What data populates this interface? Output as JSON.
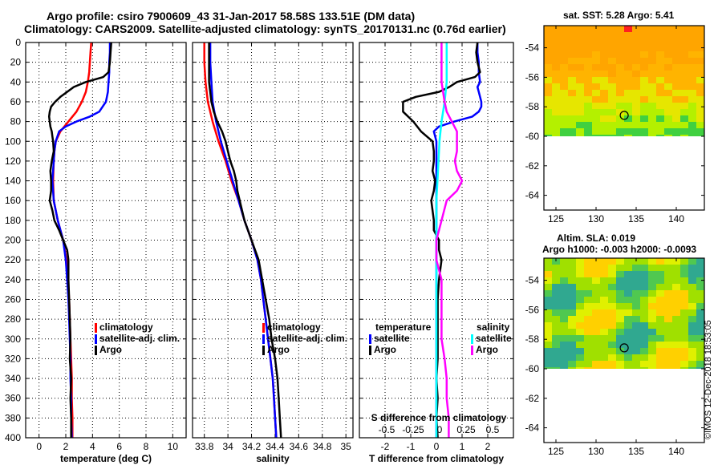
{
  "title": {
    "line1": "Argo profile: csiro 7900609_43 31-Jan-2017 58.58S 133.51E (DM data)",
    "line2": "Climatology: CARS2009. Satellite-adjusted climatology: synTS_20170131.nc (0.76d earlier)"
  },
  "depth_axis": {
    "ylim": [
      0,
      400
    ],
    "ticks": [
      0,
      20,
      40,
      60,
      80,
      100,
      120,
      140,
      160,
      180,
      200,
      220,
      240,
      260,
      280,
      300,
      320,
      340,
      360,
      380,
      400
    ]
  },
  "colors": {
    "climatology": "#ff0000",
    "satellite_adj": "#0000ff",
    "argo": "#000000",
    "sat_t": "#0000ff",
    "sat_s": "#00ffff",
    "argo_s": "#ff00ff"
  },
  "chart_data": [
    {
      "id": "temperature",
      "type": "line",
      "xlabel": "temperature (deg C)",
      "xlim": [
        -1,
        11
      ],
      "xticks": [
        0,
        2,
        4,
        6,
        8,
        10
      ],
      "ylim": [
        400,
        0
      ],
      "legend": [
        "climatology",
        "satellite-adj. clim.",
        "Argo"
      ],
      "series": [
        {
          "name": "climatology",
          "color": "#ff0000",
          "depth": [
            0,
            10,
            20,
            30,
            40,
            50,
            60,
            70,
            80,
            90,
            100,
            110,
            120,
            140,
            160,
            180,
            200,
            220,
            240,
            260,
            280,
            300,
            320,
            340,
            360,
            380,
            400
          ],
          "values": [
            3.9,
            3.85,
            3.8,
            3.75,
            3.65,
            3.5,
            3.2,
            2.8,
            2.2,
            1.6,
            1.25,
            1.15,
            1.1,
            1.05,
            1.1,
            1.4,
            1.8,
            2.05,
            2.15,
            2.25,
            2.3,
            2.35,
            2.4,
            2.45,
            2.45,
            2.5,
            2.5
          ]
        },
        {
          "name": "satellite-adj. clim.",
          "color": "#0000ff",
          "depth": [
            0,
            10,
            20,
            30,
            40,
            50,
            60,
            70,
            75,
            80,
            85,
            90,
            100,
            110,
            120,
            140,
            160,
            180,
            200,
            220,
            240,
            260,
            280,
            300,
            320,
            340,
            360,
            380,
            400
          ],
          "values": [
            5.3,
            5.3,
            5.25,
            5.25,
            5.2,
            5.15,
            5.0,
            4.5,
            3.8,
            2.8,
            2.0,
            1.5,
            1.25,
            1.15,
            1.1,
            1.0,
            1.1,
            1.4,
            1.8,
            2.0,
            2.1,
            2.2,
            2.25,
            2.3,
            2.35,
            2.35,
            2.4,
            2.4,
            2.45
          ]
        },
        {
          "name": "Argo",
          "color": "#000000",
          "depth": [
            0,
            10,
            20,
            30,
            35,
            40,
            45,
            50,
            55,
            60,
            65,
            70,
            75,
            80,
            85,
            90,
            95,
            100,
            110,
            120,
            130,
            140,
            150,
            160,
            170,
            180,
            190,
            200,
            210,
            220,
            240,
            260,
            280,
            300,
            320,
            340,
            360,
            380,
            400
          ],
          "values": [
            5.4,
            5.35,
            5.3,
            5.2,
            4.8,
            3.5,
            2.6,
            2.1,
            1.6,
            1.2,
            0.9,
            0.8,
            0.75,
            0.8,
            0.85,
            0.95,
            1.0,
            1.05,
            1.1,
            0.95,
            0.85,
            0.9,
            0.9,
            0.8,
            1.0,
            1.15,
            1.5,
            1.8,
            2.1,
            2.2,
            2.2,
            2.25,
            2.3,
            2.35,
            2.3,
            2.4,
            2.35,
            2.4,
            2.4
          ]
        }
      ]
    },
    {
      "id": "salinity",
      "type": "line",
      "xlabel": "salinity",
      "xlim": [
        33.7,
        35.06
      ],
      "xticks": [
        33.8,
        34,
        34.2,
        34.4,
        34.6,
        34.8,
        35
      ],
      "xtick_labels": [
        "33.8",
        "34",
        "34.2",
        "34.4",
        "34.6",
        "34.8",
        "35"
      ],
      "ylim": [
        400,
        0
      ],
      "legend": [
        "climatology",
        "satellite-adj. clim.",
        "Argo"
      ],
      "series": [
        {
          "name": "climatology",
          "color": "#ff0000",
          "depth": [
            0,
            20,
            40,
            60,
            80,
            100,
            120,
            140,
            160,
            180,
            200,
            220,
            240,
            260,
            280,
            300,
            320,
            340,
            360,
            380,
            400
          ],
          "values": [
            33.8,
            33.8,
            33.81,
            33.83,
            33.87,
            33.92,
            33.98,
            34.03,
            34.09,
            34.14,
            34.2,
            34.25,
            34.28,
            34.3,
            34.32,
            34.34,
            34.36,
            34.38,
            34.39,
            34.4,
            34.41
          ]
        },
        {
          "name": "satellite-adj. clim.",
          "color": "#0000ff",
          "depth": [
            0,
            20,
            40,
            60,
            80,
            100,
            120,
            140,
            160,
            180,
            200,
            220,
            240,
            260,
            280,
            300,
            320,
            340,
            360,
            380,
            400
          ],
          "values": [
            33.85,
            33.85,
            33.86,
            33.87,
            33.9,
            33.94,
            33.99,
            34.04,
            34.09,
            34.14,
            34.2,
            34.25,
            34.28,
            34.3,
            34.32,
            34.34,
            34.36,
            34.38,
            34.39,
            34.4,
            34.41
          ]
        },
        {
          "name": "Argo",
          "color": "#000000",
          "depth": [
            0,
            20,
            40,
            60,
            70,
            80,
            90,
            100,
            110,
            120,
            130,
            140,
            150,
            160,
            180,
            200,
            220,
            240,
            260,
            280,
            300,
            320,
            340,
            360,
            380,
            400
          ],
          "values": [
            33.84,
            33.84,
            33.84,
            33.86,
            33.88,
            33.91,
            33.95,
            33.98,
            34.0,
            34.02,
            34.05,
            34.07,
            34.08,
            34.1,
            34.14,
            34.2,
            34.26,
            34.29,
            34.32,
            34.35,
            34.37,
            34.4,
            34.42,
            34.43,
            34.44,
            34.45
          ]
        }
      ]
    },
    {
      "id": "difference",
      "type": "line",
      "xlabel": "T difference from climatology",
      "top_label": "S difference from climatology",
      "xlim": [
        -3,
        3
      ],
      "xticks": [
        -2,
        -1,
        0,
        1,
        2
      ],
      "s_ticks": [
        "-0.5",
        "-0.25",
        "0",
        "0.25",
        "0.5"
      ],
      "ylim": [
        400,
        0
      ],
      "legend_temperature": {
        "title": "temperature",
        "items": [
          "satellite",
          "Argo"
        ]
      },
      "legend_salinity": {
        "title": "salinity",
        "items": [
          "satellite",
          "Argo"
        ]
      },
      "series": [
        {
          "name": "T satellite",
          "color": "#0000ff",
          "depth": [
            0,
            10,
            20,
            30,
            40,
            45,
            50,
            55,
            60,
            65,
            70,
            75,
            80,
            85,
            90,
            95,
            100,
            120,
            200,
            400
          ],
          "values": [
            1.6,
            1.6,
            1.65,
            1.65,
            1.7,
            1.6,
            1.65,
            1.7,
            1.75,
            1.75,
            1.65,
            1.4,
            0.7,
            0.1,
            -0.1,
            -0.05,
            0,
            0,
            0,
            0
          ]
        },
        {
          "name": "T Argo",
          "color": "#000000",
          "depth": [
            0,
            10,
            20,
            30,
            35,
            40,
            45,
            50,
            55,
            60,
            70,
            80,
            90,
            100,
            110,
            120,
            130,
            140,
            150,
            160,
            170,
            180,
            190,
            200,
            210,
            220,
            240,
            260,
            280,
            300,
            320,
            340,
            360,
            380,
            400
          ],
          "values": [
            1.6,
            1.55,
            1.6,
            1.7,
            1.5,
            0.8,
            0.5,
            0.1,
            -0.8,
            -1.3,
            -1.3,
            -0.9,
            -0.6,
            -0.15,
            -0.1,
            -0.1,
            -0.15,
            -0.05,
            -0.1,
            -0.2,
            -0.15,
            -0.1,
            -0.1,
            0.1,
            0.1,
            0.2,
            0.1,
            0.05,
            0.05,
            0.05,
            0.05,
            0.0,
            0.05,
            0.0,
            0.05
          ]
        },
        {
          "name": "S satellite",
          "color": "#00ffff",
          "depth": [
            0,
            20,
            40,
            60,
            80,
            100,
            120,
            140,
            160,
            180,
            200,
            220,
            240,
            400
          ],
          "values": [
            0.1,
            0.1,
            0.1,
            0.08,
            0.05,
            0.03,
            0.02,
            0.01,
            0.0,
            0.0,
            0.0,
            0.0,
            0.0,
            0.0
          ]
        },
        {
          "name": "S Argo",
          "color": "#ff00ff",
          "depth": [
            0,
            20,
            40,
            60,
            70,
            80,
            90,
            100,
            110,
            120,
            130,
            140,
            150,
            160,
            180,
            200,
            220,
            240,
            260,
            280,
            300,
            320,
            340,
            360,
            380,
            400
          ],
          "values": [
            0.05,
            0.05,
            0.05,
            0.08,
            0.1,
            0.15,
            0.2,
            0.2,
            0.2,
            0.18,
            0.2,
            0.25,
            0.2,
            0.1,
            0.05,
            0.0,
            0.0,
            0.05,
            0.05,
            0.05,
            0.05,
            0.08,
            0.1,
            0.1,
            0.12,
            0.12
          ]
        }
      ]
    },
    {
      "id": "sst_map",
      "type": "heatmap",
      "title": "sat. SST: 5.28 Argo: 5.41",
      "xlim": [
        123.5,
        143.5
      ],
      "ylim": [
        -65,
        -52.5
      ],
      "xticks": [
        125,
        130,
        135,
        140
      ],
      "yticks": [
        -54,
        -56,
        -58,
        -60,
        -62,
        -64
      ],
      "data_extent_lat": [
        -60,
        -52.5
      ],
      "float_position": {
        "lon": 133.51,
        "lat": -58.58
      }
    },
    {
      "id": "sla_map",
      "type": "heatmap",
      "title": "Altim. SLA: 0.019",
      "subtitle": "Argo h1000: -0.003 h2000: -0.0093",
      "xlim": [
        123.5,
        143.5
      ],
      "ylim": [
        -65,
        -52.5
      ],
      "xticks": [
        125,
        130,
        135,
        140
      ],
      "yticks": [
        -54,
        -56,
        -58,
        -60,
        -62,
        -64
      ],
      "data_extent_lat": [
        -60,
        -52.5
      ],
      "float_position": {
        "lon": 133.51,
        "lat": -58.58
      }
    }
  ],
  "watermark": "©IMOS 12-Dec-2018 18:53:05"
}
